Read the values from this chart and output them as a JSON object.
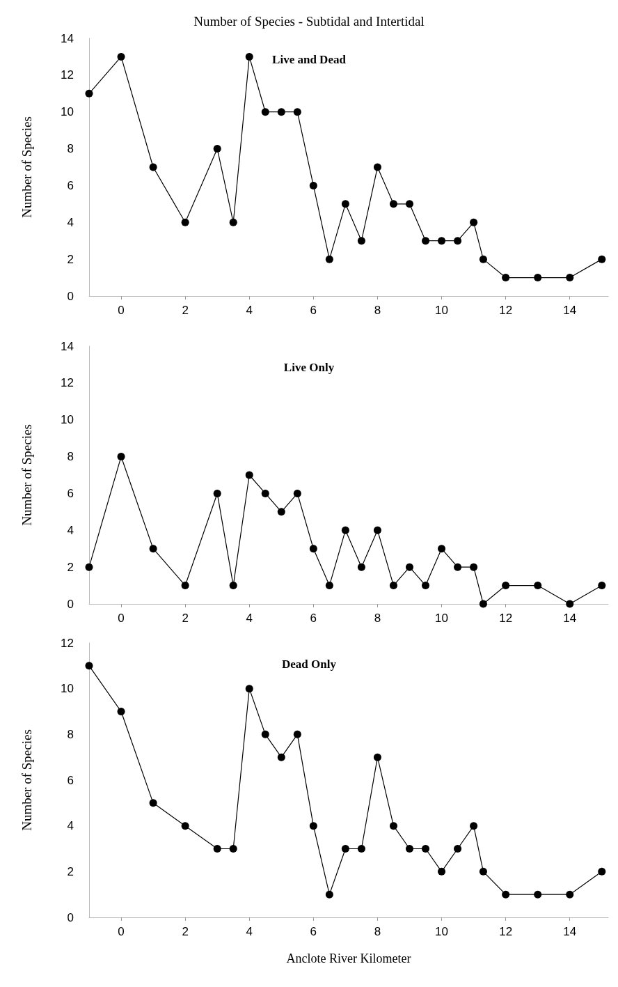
{
  "chart_data": [
    {
      "type": "line",
      "title": "Number of Species - Subtidal and Intertidal",
      "ylabel": "Number of Species",
      "annotations": [
        "Live and Dead"
      ],
      "x": [
        -1,
        0,
        1,
        2,
        3,
        3.5,
        4,
        4.5,
        5,
        5.5,
        6,
        6.5,
        7,
        7.5,
        8,
        8.5,
        9,
        9.5,
        10,
        10.5,
        11,
        11.3,
        12,
        13,
        14,
        15
      ],
      "series": [
        {
          "color": "#000000",
          "values": [
            11,
            13,
            7,
            4,
            8,
            4,
            13,
            10,
            10,
            10,
            6,
            2,
            5,
            3,
            7,
            5,
            5,
            3,
            3,
            3,
            4,
            2,
            1,
            1,
            1,
            2
          ]
        }
      ],
      "xlim": [
        -1,
        15.2
      ],
      "xticks": [
        0,
        2,
        4,
        6,
        8,
        10,
        12,
        14
      ],
      "ylim": [
        0,
        14
      ],
      "yticks": [
        0,
        2,
        4,
        6,
        8,
        10,
        12,
        14
      ],
      "marker": "circle",
      "line_style": "solid"
    },
    {
      "type": "line",
      "ylabel": "Number of Species",
      "annotations": [
        "Live Only"
      ],
      "x": [
        -1,
        0,
        1,
        2,
        3,
        3.5,
        4,
        4.5,
        5,
        5.5,
        6,
        6.5,
        7,
        7.5,
        8,
        8.5,
        9,
        9.5,
        10,
        10.5,
        11,
        11.3,
        12,
        13,
        14,
        15
      ],
      "series": [
        {
          "color": "#000000",
          "values": [
            2,
            8,
            3,
            1,
            6,
            1,
            7,
            6,
            5,
            6,
            3,
            1,
            4,
            2,
            4,
            1,
            2,
            1,
            3,
            2,
            2,
            0,
            1,
            1,
            0,
            1
          ]
        }
      ],
      "xlim": [
        -1,
        15.2
      ],
      "xticks": [
        0,
        2,
        4,
        6,
        8,
        10,
        12,
        14
      ],
      "ylim": [
        0,
        14
      ],
      "yticks": [
        0,
        2,
        4,
        6,
        8,
        10,
        12,
        14
      ],
      "marker": "circle",
      "line_style": "solid"
    },
    {
      "type": "line",
      "ylabel": "Number of Species",
      "xlabel": "Anclote River Kilometer",
      "annotations": [
        "Dead Only"
      ],
      "x": [
        -1,
        0,
        1,
        2,
        3,
        3.5,
        4,
        4.5,
        5,
        5.5,
        6,
        6.5,
        7,
        7.5,
        8,
        8.5,
        9,
        9.5,
        10,
        10.5,
        11,
        11.3,
        12,
        13,
        14,
        15
      ],
      "series": [
        {
          "color": "#000000",
          "values": [
            11,
            9,
            5,
            4,
            3,
            3,
            10,
            8,
            7,
            8,
            4,
            1,
            3,
            3,
            7,
            4,
            3,
            3,
            2,
            3,
            4,
            2,
            1,
            1,
            1,
            2
          ]
        }
      ],
      "xlim": [
        -1,
        15.2
      ],
      "xticks": [
        0,
        2,
        4,
        6,
        8,
        10,
        12,
        14
      ],
      "ylim": [
        0,
        12
      ],
      "yticks": [
        0,
        2,
        4,
        6,
        8,
        10,
        12
      ],
      "marker": "circle",
      "line_style": "solid"
    }
  ]
}
